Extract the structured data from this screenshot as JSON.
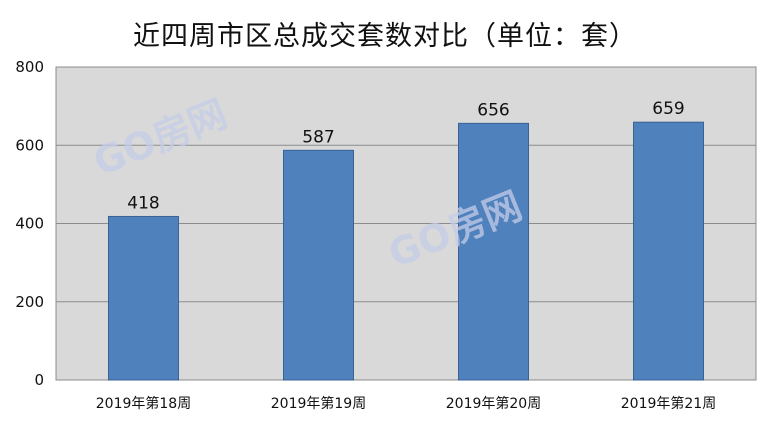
{
  "watermark": "GO房网",
  "chart_data": {
    "type": "bar",
    "title": "近四周市区总成交套数对比（单位：套）",
    "categories": [
      "2019年第18周",
      "2019年第19周",
      "2019年第20周",
      "2019年第21周"
    ],
    "series": [
      {
        "values": [
          418,
          587,
          656,
          659
        ]
      }
    ],
    "data_labels": [
      "418",
      "587",
      "656",
      "659"
    ],
    "yticks": [
      "0",
      "200",
      "400",
      "600",
      "800"
    ],
    "ylim": [
      0,
      800
    ],
    "grid": true,
    "legend": "none",
    "colors": {
      "bar": "#4f81bd",
      "bar_border": "#3a6394",
      "plot_bg": "#d9d9d9",
      "grid": "#8c8c8c"
    }
  }
}
